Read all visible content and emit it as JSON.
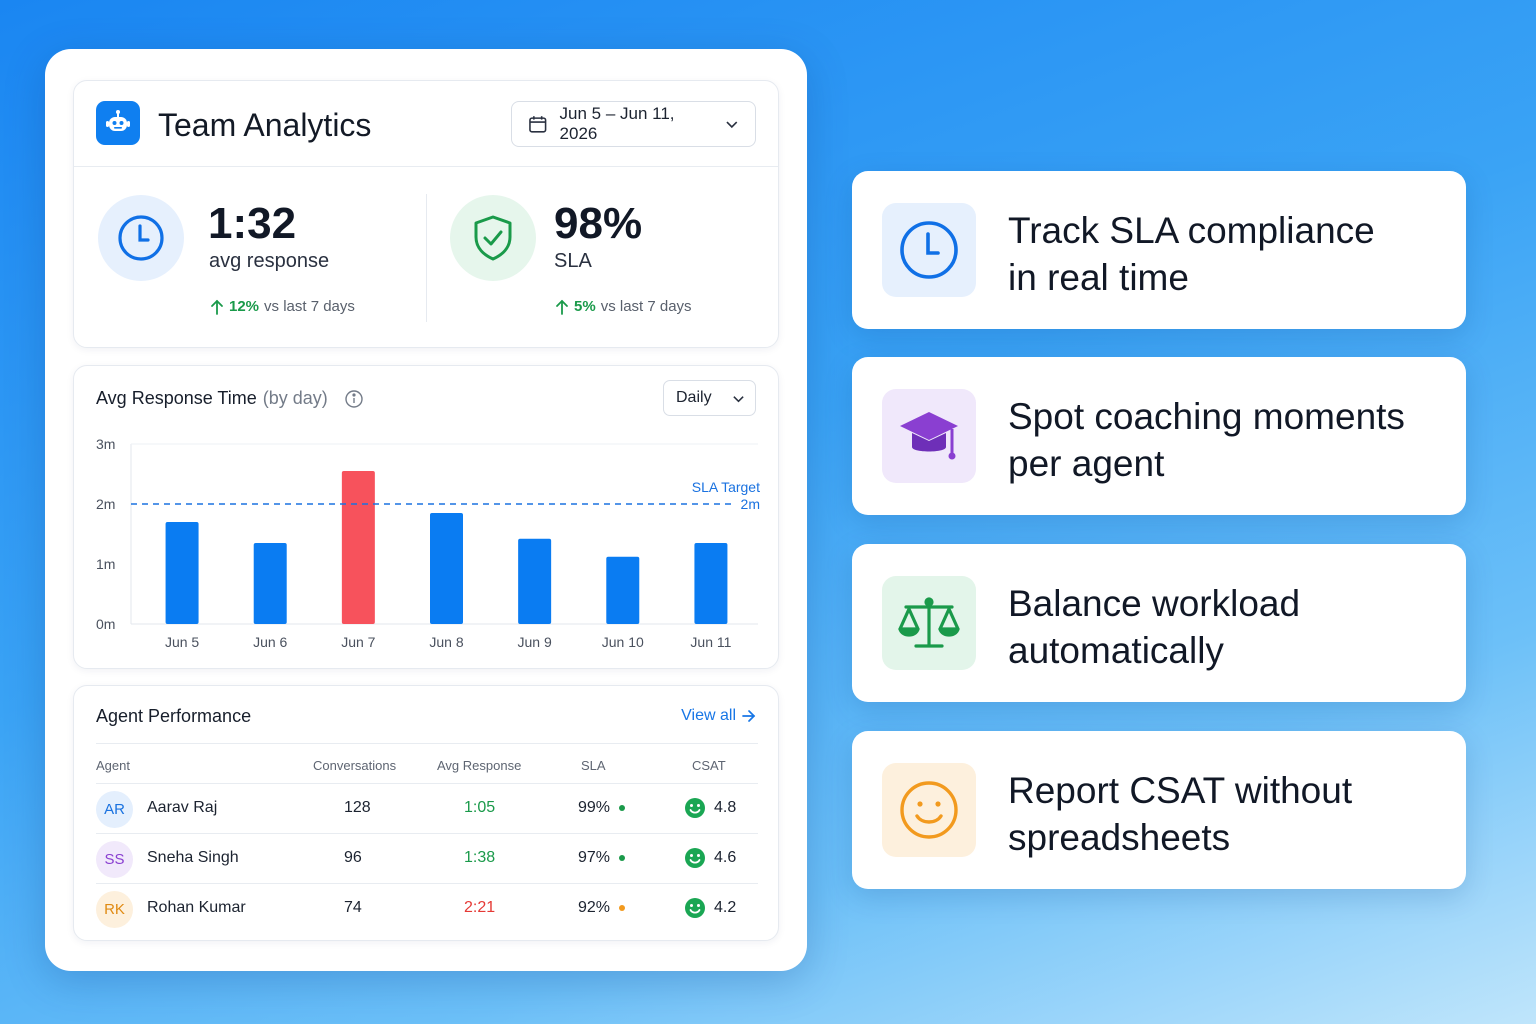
{
  "header": {
    "title": "Team Analytics",
    "date_range": "Jun 5 – Jun 11, 2026"
  },
  "kpis": [
    {
      "value": "1:32",
      "label": "avg response",
      "delta": "12%",
      "delta_text": "vs last 7 days"
    },
    {
      "value": "98%",
      "label": "SLA",
      "delta": "5%",
      "delta_text": "vs last 7 days"
    }
  ],
  "chart_section": {
    "title": "Avg Response Time",
    "title_suffix": "(by day)",
    "granularity": "Daily"
  },
  "chart_data": {
    "type": "bar",
    "categories": [
      "Jun 5",
      "Jun 6",
      "Jun 7",
      "Jun 8",
      "Jun 9",
      "Jun 10",
      "Jun 11"
    ],
    "values": [
      1.7,
      1.35,
      2.55,
      1.85,
      1.42,
      1.12,
      1.35
    ],
    "y_unit": "minutes",
    "y_ticks": [
      "0m",
      "1m",
      "2m",
      "3m"
    ],
    "ylim": [
      0,
      3
    ],
    "target": {
      "label": "SLA Target",
      "value_label": "2m",
      "value": 2
    },
    "colors": {
      "normal": "#0a7cf2",
      "over": "#f7525c",
      "target": "#1a72e0"
    }
  },
  "agents": {
    "title": "Agent Performance",
    "view_all": "View all",
    "columns": [
      "Agent",
      "Conversations",
      "Avg Response",
      "SLA",
      "CSAT"
    ],
    "rows": [
      {
        "initials": "AR",
        "name": "Aarav Raj",
        "conversations": "128",
        "avg_response": "1:05",
        "sla": "99%",
        "csat": "4.8",
        "response_color": "#1a9a4a",
        "sla_color": "#1a9a4a",
        "avatar_bg": "#e4effd",
        "avatar_fg": "#1a72e0"
      },
      {
        "initials": "SS",
        "name": "Sneha Singh",
        "conversations": "96",
        "avg_response": "1:38",
        "sla": "97%",
        "csat": "4.6",
        "response_color": "#1a9a4a",
        "sla_color": "#1a9a4a",
        "avatar_bg": "#f1e9fb",
        "avatar_fg": "#8a3fd1"
      },
      {
        "initials": "RK",
        "name": "Rohan Kumar",
        "conversations": "74",
        "avg_response": "2:21",
        "sla": "92%",
        "csat": "4.2",
        "response_color": "#e53935",
        "sla_color": "#f29a1e",
        "avatar_bg": "#fdf0dd",
        "avatar_fg": "#e08a12"
      }
    ]
  },
  "features": [
    {
      "icon": "clock-icon",
      "line1": "Track SLA compliance",
      "line2": "in real time"
    },
    {
      "icon": "graduation-cap-icon",
      "line1": "Spot coaching moments",
      "line2": "per agent"
    },
    {
      "icon": "scales-icon",
      "line1": "Balance workload",
      "line2": "automatically"
    },
    {
      "icon": "smiley-icon",
      "line1": "Report CSAT without",
      "line2": "spreadsheets"
    }
  ]
}
